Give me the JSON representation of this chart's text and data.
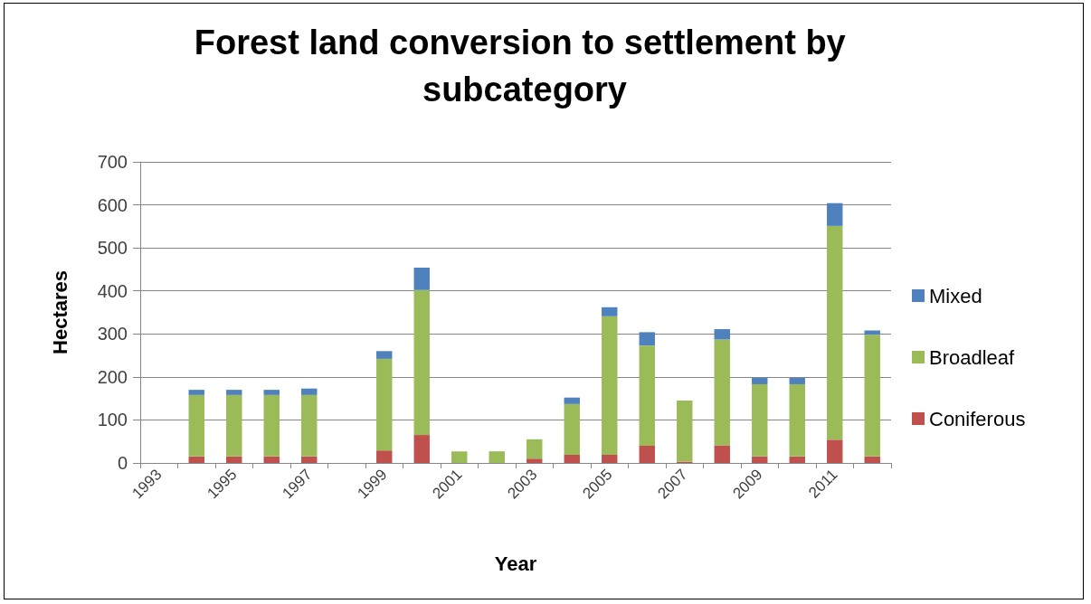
{
  "chart_data": {
    "type": "bar",
    "title": "Forest land conversion to settlement by subcategory",
    "xlabel": "Year",
    "ylabel": "Hectares",
    "categories": [
      "1993",
      null,
      "1995",
      null,
      "1997",
      null,
      "1999",
      null,
      "2001",
      null,
      "2003",
      null,
      "2005",
      null,
      "2007",
      null,
      "2009",
      null,
      "2011",
      null
    ],
    "series": [
      {
        "name": "Coniferous",
        "color": "#c0504d",
        "values": [
          null,
          15,
          15,
          15,
          15,
          null,
          29,
          65,
          null,
          null,
          10,
          19,
          19,
          40,
          3,
          41,
          15,
          15,
          54,
          15
        ]
      },
      {
        "name": "Broadleaf",
        "color": "#9bbb59",
        "values": [
          null,
          143,
          143,
          143,
          143,
          null,
          213,
          337,
          27,
          27,
          45,
          118,
          322,
          233,
          142,
          246,
          168,
          168,
          497,
          283
        ]
      },
      {
        "name": "Mixed",
        "color": "#4f81bd",
        "values": [
          null,
          12,
          12,
          12,
          15,
          null,
          18,
          52,
          null,
          null,
          null,
          15,
          21,
          31,
          null,
          24,
          15,
          15,
          53,
          10
        ]
      }
    ],
    "stacked": true,
    "ylim": [
      0,
      700
    ],
    "yticks": [
      0,
      100,
      200,
      300,
      400,
      500,
      600,
      700
    ],
    "grid": "y",
    "legend": "right"
  }
}
